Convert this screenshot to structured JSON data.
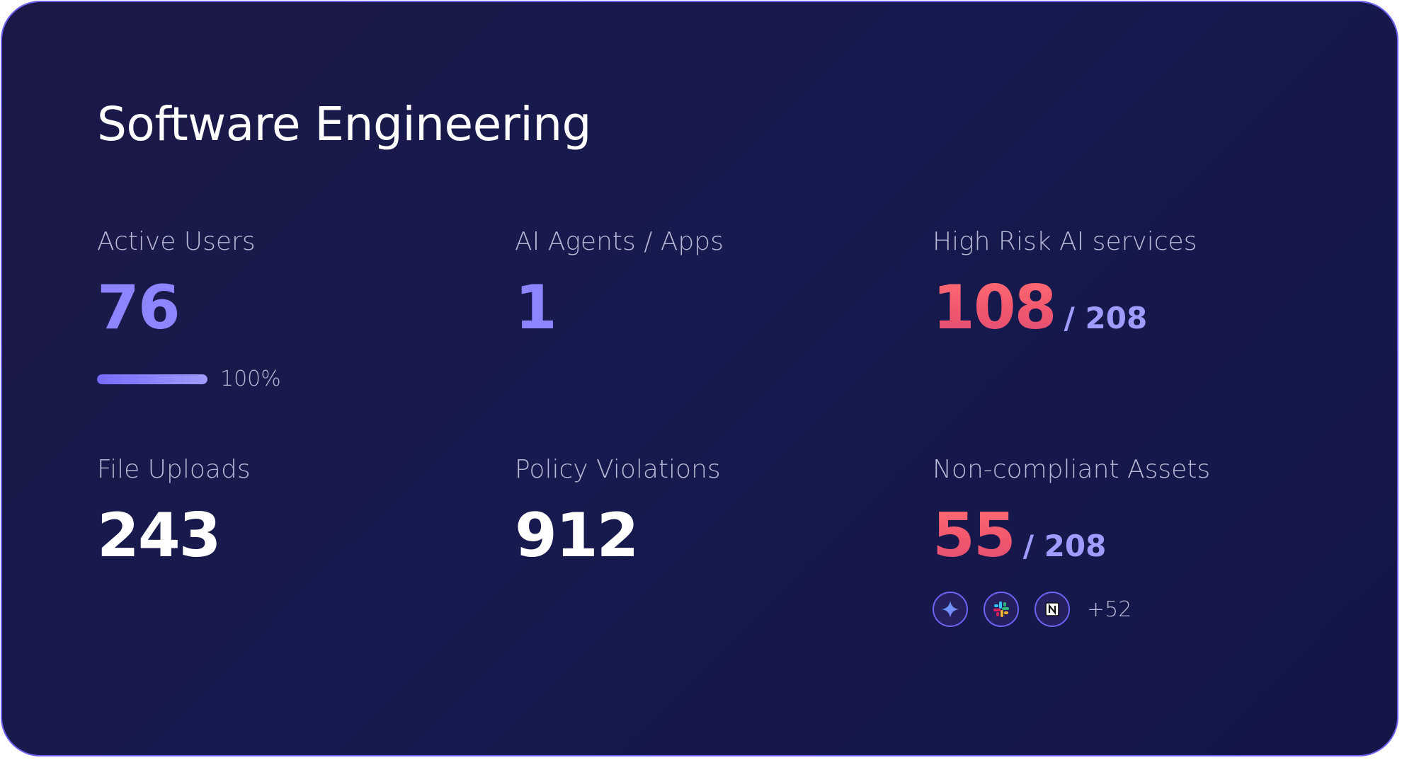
{
  "title": "Software Engineering",
  "stats": {
    "active_users": {
      "label": "Active Users",
      "value": "76",
      "progress_fraction": 1.0,
      "progress_text": "100%"
    },
    "ai_agents": {
      "label": "AI Agents / Apps",
      "value": "1"
    },
    "high_risk": {
      "label": "High Risk AI services",
      "value": "108",
      "total": "/ 208"
    },
    "file_uploads": {
      "label": "File Uploads",
      "value": "243"
    },
    "policy_violations": {
      "label": "Policy Violations",
      "value": "912"
    },
    "non_compliant": {
      "label": "Non-compliant Assets",
      "value": "55",
      "total": "/ 208",
      "apps": [
        "gemini-icon",
        "slack-icon",
        "notion-icon"
      ],
      "more": "+52"
    }
  },
  "colors": {
    "accent_purple": "#8c85ff",
    "risk_red": "#f0556e",
    "card_border": "#6d62f0",
    "card_background": "#171a4e"
  }
}
